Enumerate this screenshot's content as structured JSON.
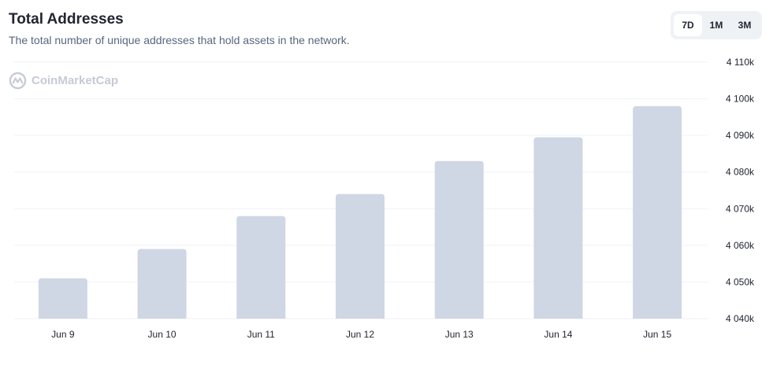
{
  "header": {
    "title": "Total Addresses",
    "subtitle": "The total number of unique addresses that hold assets in the network."
  },
  "range_tabs": [
    {
      "label": "7D",
      "active": true
    },
    {
      "label": "1M",
      "active": false
    },
    {
      "label": "3M",
      "active": false
    }
  ],
  "watermark": {
    "text": "CoinMarketCap",
    "icon": "coinmarketcap-logo-icon"
  },
  "colors": {
    "bar": "#cfd6e4",
    "grid": "#eff2f5",
    "text": "#222531",
    "subtle": "#58667e"
  },
  "chart_data": {
    "type": "bar",
    "categories": [
      "Jun 9",
      "Jun 10",
      "Jun 11",
      "Jun 12",
      "Jun 13",
      "Jun 14",
      "Jun 15"
    ],
    "values": [
      4051000,
      4059000,
      4068000,
      4074000,
      4083000,
      4089500,
      4098000
    ],
    "ylim": [
      4040000,
      4110000
    ],
    "yticks": [
      4040000,
      4050000,
      4060000,
      4070000,
      4080000,
      4090000,
      4100000,
      4110000
    ],
    "ytick_labels": [
      "4 040k",
      "4 050k",
      "4 060k",
      "4 070k",
      "4 080k",
      "4 090k",
      "4 100k",
      "4 110k"
    ],
    "grid": true,
    "y_axis_position": "right"
  }
}
